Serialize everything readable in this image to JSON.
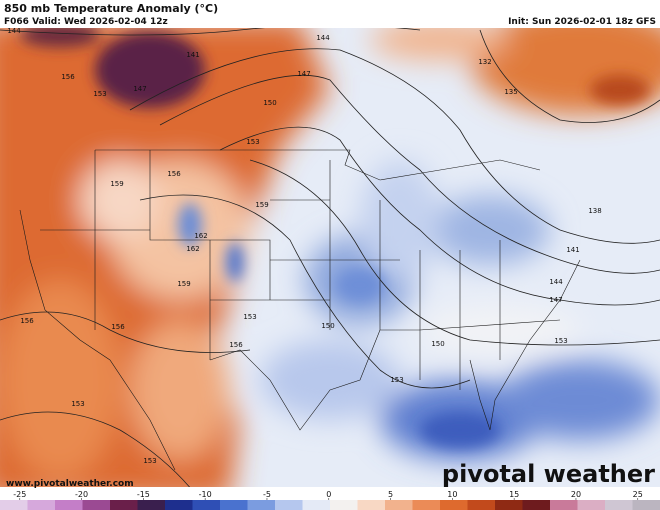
{
  "header": {
    "title": "850 mb Temperature Anomaly (°C)",
    "valid": "F066 Valid: Wed 2026-02-04 12z",
    "init": "Init: Sun 2026-02-01 18z GFS"
  },
  "footer": {
    "website": "www.pivotalweather.com",
    "brand": "pivotal weather"
  },
  "contour_labels": [
    144,
    156,
    153,
    147,
    141,
    144,
    147,
    150,
    153,
    156,
    159,
    162,
    162,
    159,
    159,
    153,
    156,
    156,
    156,
    153,
    153,
    132,
    135,
    138,
    141,
    144,
    147,
    150,
    153,
    153,
    150
  ],
  "colorbar": {
    "lim": [
      -26.6,
      26.8
    ],
    "ticks": [
      -25,
      -20,
      -15,
      -10,
      -5,
      0,
      5,
      10,
      15,
      20,
      25
    ],
    "colors": [
      "#e3cde8",
      "#d6a8dc",
      "#c47ec8",
      "#9b4a93",
      "#6a1f4a",
      "#3a1f4e",
      "#1e2f8e",
      "#2f4fb5",
      "#4a72cf",
      "#7b9ce0",
      "#b5c7ee",
      "#e4eaf6",
      "#f3f1ef",
      "#f8d8c4",
      "#f2b28d",
      "#eb8b57",
      "#de6a2e",
      "#c24a1c",
      "#8f2a14",
      "#6e1b1e",
      "#c97a9a",
      "#dbaec4",
      "#cfc6d3",
      "#bbb5c0"
    ]
  }
}
